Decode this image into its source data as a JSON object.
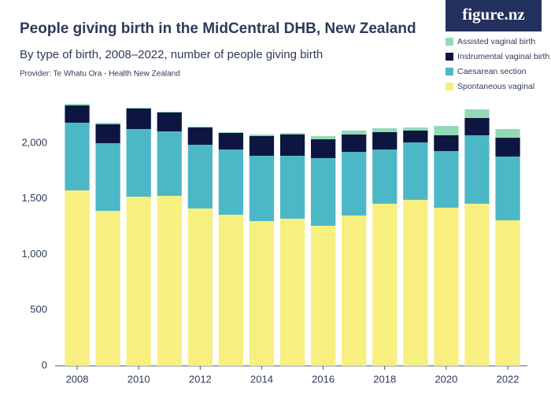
{
  "chart_data": {
    "type": "stacked_bar",
    "title": "People giving birth in the MidCentral DHB, New Zealand",
    "subtitle": "By type of birth, 2008–2022, number of people giving birth",
    "provider": "Provider: Te Whatu Ora - Health New Zealand",
    "logo": "figure.nz",
    "x": [
      2008,
      2009,
      2010,
      2011,
      2012,
      2013,
      2014,
      2015,
      2016,
      2017,
      2018,
      2019,
      2020,
      2021,
      2022
    ],
    "xlim": [
      2007.5,
      2022.5
    ],
    "xticks": [
      2008,
      2010,
      2012,
      2014,
      2016,
      2018,
      2020,
      2022
    ],
    "ylim": [
      0,
      2400
    ],
    "yticks": [
      0,
      500,
      {
        "value": 1000,
        "label": "1,000"
      },
      {
        "value": 1500,
        "label": "1,500"
      },
      {
        "value": 2000,
        "label": "2,000"
      }
    ],
    "grid": false,
    "legend": "top-right",
    "series": [
      {
        "name": "Spontaneous vaginal",
        "color": "#f7ef80",
        "values": [
          1576,
          1392,
          1519,
          1527,
          1413,
          1357,
          1300,
          1322,
          1258,
          1350,
          1456,
          1491,
          1420,
          1456,
          1307
        ]
      },
      {
        "name": "Caesarean section",
        "color": "#4cb8c7",
        "values": [
          608,
          608,
          608,
          579,
          573,
          586,
          587,
          565,
          608,
          572,
          487,
          516,
          509,
          615,
          573
        ]
      },
      {
        "name": "Instrumental vaginal birth",
        "color": "#0c1640",
        "values": [
          155,
          170,
          184,
          170,
          155,
          149,
          177,
          191,
          169,
          156,
          156,
          106,
          142,
          155,
          169
        ]
      },
      {
        "name": "Assisted vaginal birth",
        "color": "#92dab7",
        "values": [
          14,
          14,
          7,
          7,
          7,
          7,
          14,
          14,
          29,
          35,
          35,
          28,
          84,
          78,
          78
        ]
      }
    ]
  }
}
